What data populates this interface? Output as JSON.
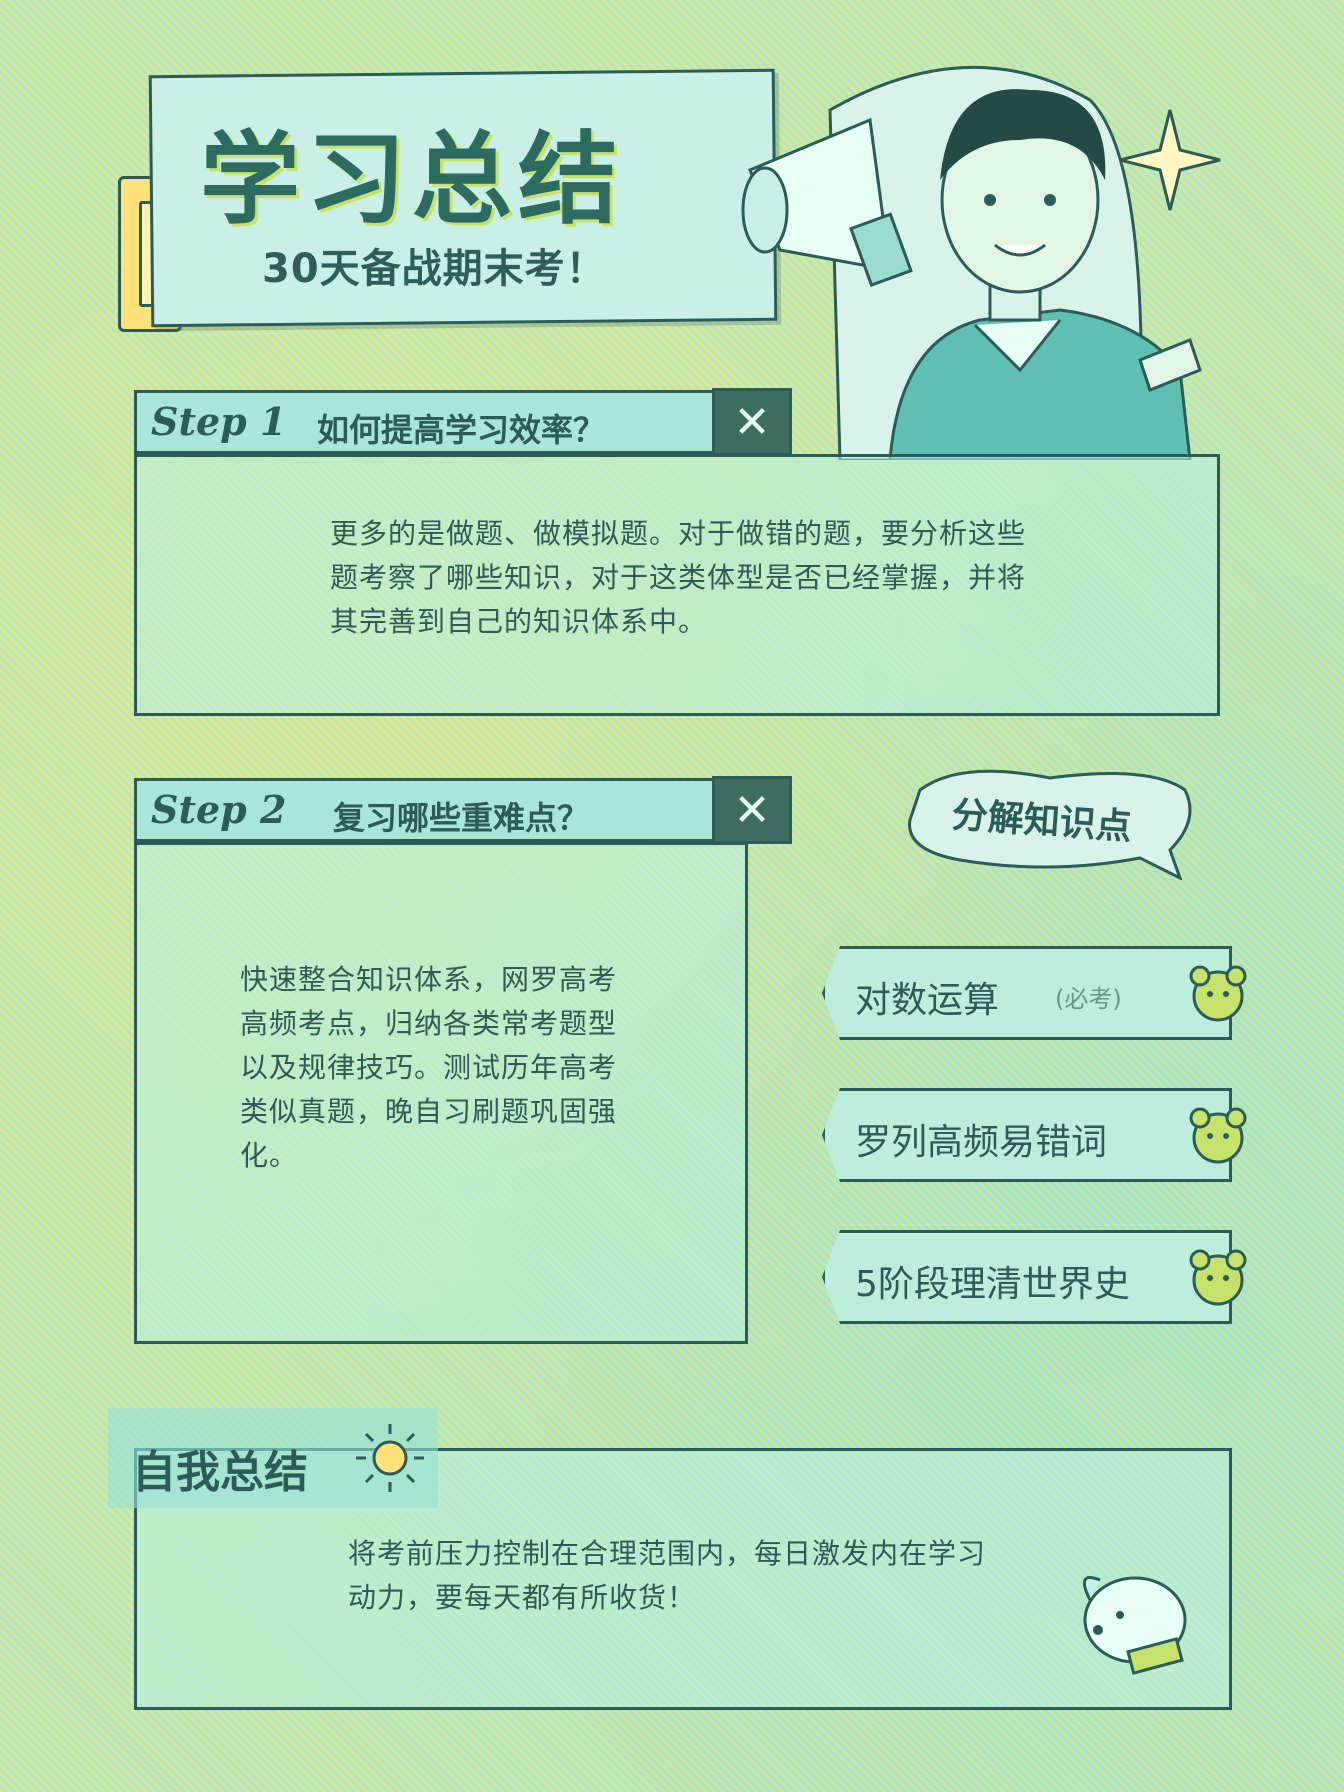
{
  "title": {
    "main": "学习总结",
    "subtitle": "30天备战期末考！"
  },
  "step1": {
    "tag": "Step 1",
    "question": "如何提高学习效率？",
    "close_icon": "close-icon",
    "body": "更多的是做题、做模拟题。对于做错的题，要分析这些题考察了哪些知识，对于这类体型是否已经掌握，并将其完善到自己的知识体系中。"
  },
  "step2": {
    "tag": "Step 2",
    "question": "复习哪些重难点？",
    "close_icon": "close-icon",
    "body": "快速整合知识体系，网罗高考高频考点，归纳各类常考题型以及规律技巧。测试历年高考类似真题，晚自习刷题巩固强化。"
  },
  "decompose": {
    "label": "分解知识点",
    "items": [
      {
        "label": "对数运算",
        "note": "(必考)"
      },
      {
        "label": "罗列高频易错词"
      },
      {
        "label": "5阶段理清世界史"
      }
    ]
  },
  "summary": {
    "title": "自我总结",
    "body": "将考前压力控制在合理范围内，每日激发内在学习动力，要每天都有所收货！"
  },
  "colors": {
    "ink": "#2b5c57",
    "panel": "#b9f0e1",
    "accent_yellow": "#ffe27a"
  }
}
